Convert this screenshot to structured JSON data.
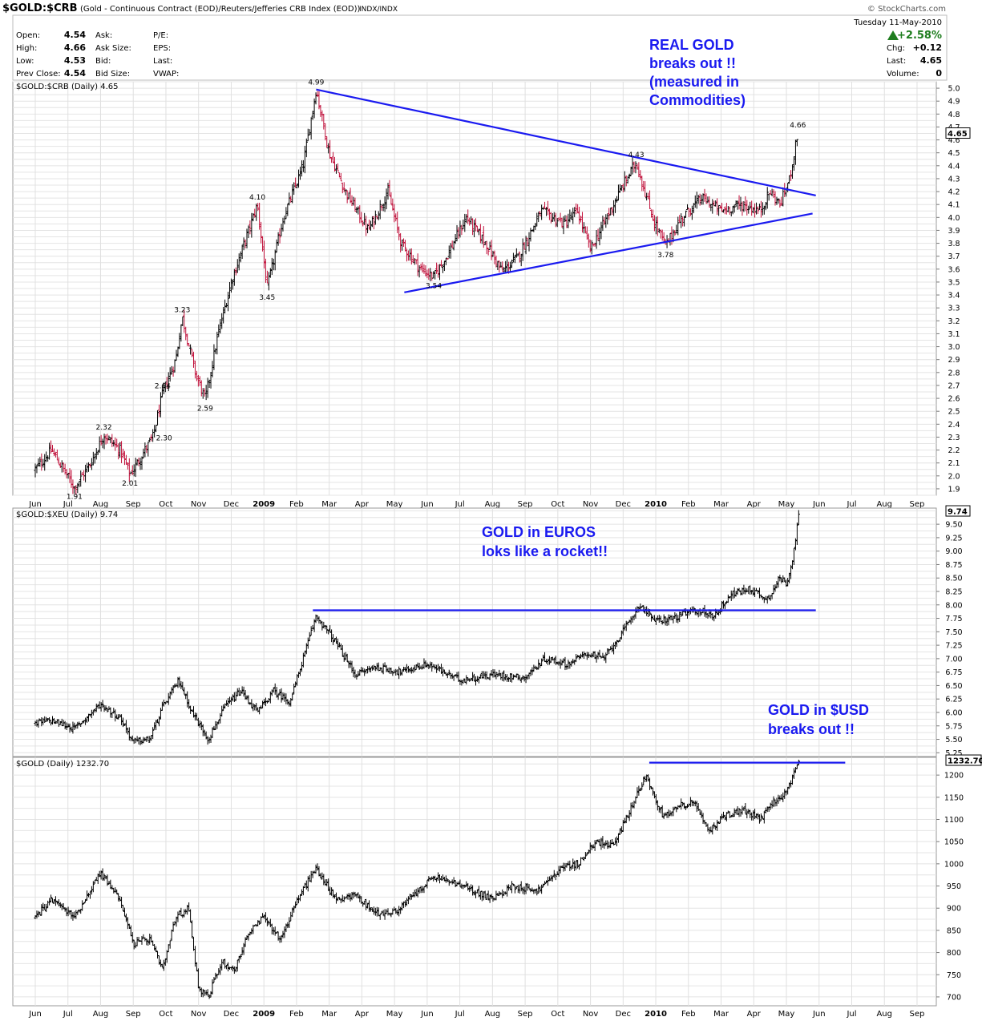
{
  "header": {
    "symbol": "$GOLD:$CRB",
    "description": "(Gold - Continuous Contract (EOD)/Reuters/Jefferies CRB Index (EOD))",
    "exchange": "INDX/INDX",
    "brand": "© StockCharts.com",
    "date_line": "Tuesday  11-May-2010",
    "change_pct": "+2.58%",
    "quote_left": [
      {
        "label": "Open:",
        "value": "4.54"
      },
      {
        "label": "High:",
        "value": "4.66"
      },
      {
        "label": "Low:",
        "value": "4.53"
      },
      {
        "label": "Prev Close:",
        "value": "4.54"
      }
    ],
    "quote_mid": [
      "Ask:",
      "Ask Size:",
      "Bid:",
      "Bid Size:"
    ],
    "quote_mid2": [
      "P/E:",
      "EPS:",
      "Last:",
      "VWAP:"
    ],
    "quote_right": [
      {
        "label": "Chg:",
        "value": "+0.12"
      },
      {
        "label": "Last:",
        "value": "4.65"
      },
      {
        "label": "Volume:",
        "value": "0"
      }
    ]
  },
  "colors": {
    "annotation": "#1a1af0",
    "trendline": "#1a1af0",
    "down_bar": "#c0103a",
    "up_bar": "#000000",
    "grid": "#d8d8d8"
  },
  "x_axis": {
    "months": [
      "Jun",
      "Jul",
      "Aug",
      "Sep",
      "Oct",
      "Nov",
      "Dec",
      "2009",
      "Feb",
      "Mar",
      "Apr",
      "May",
      "Jun",
      "Jul",
      "Aug",
      "Sep",
      "Oct",
      "Nov",
      "Dec",
      "2010",
      "Feb",
      "Mar",
      "Apr",
      "May",
      "Jun",
      "Jul",
      "Aug",
      "Sep"
    ]
  },
  "chart_data": [
    {
      "type": "ohlc",
      "label": "$GOLD:$CRB (Daily) 4.65",
      "last": "4.65",
      "y_ticks": [
        1.9,
        2.0,
        2.1,
        2.2,
        2.3,
        2.4,
        2.5,
        2.6,
        2.7,
        2.8,
        2.9,
        3.0,
        3.1,
        3.2,
        3.3,
        3.4,
        3.5,
        3.6,
        3.7,
        3.8,
        3.9,
        4.0,
        4.1,
        4.2,
        4.3,
        4.4,
        4.5,
        4.6,
        4.7,
        4.8,
        4.9,
        5.0
      ],
      "anchors": [
        {
          "m": 0,
          "v": 2.05
        },
        {
          "m": 0.5,
          "v": 2.2
        },
        {
          "m": 1.2,
          "v": 1.91
        },
        {
          "m": 1.7,
          "v": 2.1
        },
        {
          "m": 2.1,
          "v": 2.32
        },
        {
          "m": 2.6,
          "v": 2.2
        },
        {
          "m": 2.9,
          "v": 2.01
        },
        {
          "m": 3.6,
          "v": 2.3
        },
        {
          "m": 3.9,
          "v": 2.64
        },
        {
          "m": 4.3,
          "v": 2.9
        },
        {
          "m": 4.5,
          "v": 3.23
        },
        {
          "m": 4.9,
          "v": 2.8
        },
        {
          "m": 5.2,
          "v": 2.59
        },
        {
          "m": 5.6,
          "v": 3.1
        },
        {
          "m": 6.0,
          "v": 3.5
        },
        {
          "m": 6.4,
          "v": 3.8
        },
        {
          "m": 6.8,
          "v": 4.1
        },
        {
          "m": 7.1,
          "v": 3.45
        },
        {
          "m": 7.6,
          "v": 4.0
        },
        {
          "m": 8.2,
          "v": 4.4
        },
        {
          "m": 8.6,
          "v": 4.99
        },
        {
          "m": 9.0,
          "v": 4.5
        },
        {
          "m": 9.5,
          "v": 4.2
        },
        {
          "m": 10.2,
          "v": 3.9
        },
        {
          "m": 10.8,
          "v": 4.2
        },
        {
          "m": 11.2,
          "v": 3.8
        },
        {
          "m": 11.8,
          "v": 3.6
        },
        {
          "m": 12.2,
          "v": 3.54
        },
        {
          "m": 12.6,
          "v": 3.7
        },
        {
          "m": 13.2,
          "v": 4.0
        },
        {
          "m": 13.8,
          "v": 3.8
        },
        {
          "m": 14.3,
          "v": 3.58
        },
        {
          "m": 14.8,
          "v": 3.7
        },
        {
          "m": 15.5,
          "v": 4.05
        },
        {
          "m": 16.2,
          "v": 3.95
        },
        {
          "m": 16.6,
          "v": 4.05
        },
        {
          "m": 17.0,
          "v": 3.75
        },
        {
          "m": 17.5,
          "v": 4.0
        },
        {
          "m": 18.0,
          "v": 4.25
        },
        {
          "m": 18.4,
          "v": 4.43
        },
        {
          "m": 18.9,
          "v": 4.0
        },
        {
          "m": 19.3,
          "v": 3.78
        },
        {
          "m": 19.8,
          "v": 4.0
        },
        {
          "m": 20.4,
          "v": 4.15
        },
        {
          "m": 21.0,
          "v": 4.05
        },
        {
          "m": 21.6,
          "v": 4.1
        },
        {
          "m": 22.2,
          "v": 4.05
        },
        {
          "m": 22.5,
          "v": 4.2
        },
        {
          "m": 22.8,
          "v": 4.1
        },
        {
          "m": 23.1,
          "v": 4.3
        },
        {
          "m": 23.35,
          "v": 4.66
        }
      ],
      "point_labels": [
        {
          "m": 1.2,
          "v": 1.91,
          "text": "1.91",
          "pos": "below"
        },
        {
          "m": 2.1,
          "v": 2.32,
          "text": "2.32",
          "pos": "above"
        },
        {
          "m": 2.9,
          "v": 2.01,
          "text": "2.01",
          "pos": "below"
        },
        {
          "m": 3.6,
          "v": 2.3,
          "text": "2.30",
          "pos": "right"
        },
        {
          "m": 3.9,
          "v": 2.64,
          "text": "2.64",
          "pos": "above"
        },
        {
          "m": 4.5,
          "v": 3.23,
          "text": "3.23",
          "pos": "above"
        },
        {
          "m": 5.2,
          "v": 2.59,
          "text": "2.59",
          "pos": "below"
        },
        {
          "m": 6.8,
          "v": 4.1,
          "text": "4.10",
          "pos": "above"
        },
        {
          "m": 7.1,
          "v": 3.45,
          "text": "3.45",
          "pos": "below"
        },
        {
          "m": 8.6,
          "v": 4.99,
          "text": "4.99",
          "pos": "above"
        },
        {
          "m": 12.2,
          "v": 3.54,
          "text": "3.54",
          "pos": "below"
        },
        {
          "m": 18.4,
          "v": 4.43,
          "text": "4.43",
          "pos": "above"
        },
        {
          "m": 19.3,
          "v": 3.78,
          "text": "3.78",
          "pos": "below"
        },
        {
          "m": 23.35,
          "v": 4.66,
          "text": "4.66",
          "pos": "above"
        }
      ],
      "trendlines": [
        {
          "x1": 8.6,
          "y1": 4.99,
          "x2": 23.9,
          "y2": 4.17
        },
        {
          "x1": 11.3,
          "y1": 3.42,
          "x2": 23.8,
          "y2": 4.03
        }
      ],
      "annotation": [
        "REAL GOLD",
        "breaks out !!",
        "(measured in",
        "Commodities)"
      ]
    },
    {
      "type": "ohlc",
      "label": "$GOLD:$XEU (Daily) 9.74",
      "last": "9.74",
      "y_ticks": [
        5.25,
        5.5,
        5.75,
        6.0,
        6.25,
        6.5,
        6.75,
        7.0,
        7.25,
        7.5,
        7.75,
        8.0,
        8.25,
        8.5,
        8.75,
        9.0,
        9.25,
        9.5
      ],
      "y_tick_labels": [
        "5.25",
        "5.50",
        "5.75",
        "6.00",
        "6.25",
        "6.50",
        "6.75",
        "7.00",
        "7.25",
        "7.50",
        "7.75",
        "8.00",
        "8.25",
        "8.50",
        "8.75",
        "9.00",
        "9.25",
        "9.50"
      ],
      "anchors": [
        {
          "m": 0,
          "v": 5.8
        },
        {
          "m": 0.5,
          "v": 5.85
        },
        {
          "m": 1.2,
          "v": 5.7
        },
        {
          "m": 2.0,
          "v": 6.15
        },
        {
          "m": 2.6,
          "v": 5.9
        },
        {
          "m": 3.0,
          "v": 5.45
        },
        {
          "m": 3.5,
          "v": 5.5
        },
        {
          "m": 3.9,
          "v": 6.1
        },
        {
          "m": 4.4,
          "v": 6.6
        },
        {
          "m": 4.8,
          "v": 6.0
        },
        {
          "m": 5.3,
          "v": 5.5
        },
        {
          "m": 5.8,
          "v": 6.1
        },
        {
          "m": 6.3,
          "v": 6.4
        },
        {
          "m": 6.8,
          "v": 6.0
        },
        {
          "m": 7.3,
          "v": 6.4
        },
        {
          "m": 7.8,
          "v": 6.2
        },
        {
          "m": 8.2,
          "v": 7.0
        },
        {
          "m": 8.6,
          "v": 7.8
        },
        {
          "m": 9.2,
          "v": 7.3
        },
        {
          "m": 9.8,
          "v": 6.7
        },
        {
          "m": 10.4,
          "v": 6.85
        },
        {
          "m": 11.2,
          "v": 6.75
        },
        {
          "m": 12.0,
          "v": 6.9
        },
        {
          "m": 13.0,
          "v": 6.6
        },
        {
          "m": 14.0,
          "v": 6.7
        },
        {
          "m": 15.0,
          "v": 6.65
        },
        {
          "m": 15.6,
          "v": 7.0
        },
        {
          "m": 16.3,
          "v": 6.9
        },
        {
          "m": 16.9,
          "v": 7.1
        },
        {
          "m": 17.4,
          "v": 7.0
        },
        {
          "m": 18.0,
          "v": 7.5
        },
        {
          "m": 18.5,
          "v": 8.0
        },
        {
          "m": 19.0,
          "v": 7.7
        },
        {
          "m": 19.5,
          "v": 7.75
        },
        {
          "m": 20.2,
          "v": 7.9
        },
        {
          "m": 20.8,
          "v": 7.8
        },
        {
          "m": 21.3,
          "v": 8.2
        },
        {
          "m": 21.9,
          "v": 8.3
        },
        {
          "m": 22.4,
          "v": 8.1
        },
        {
          "m": 22.8,
          "v": 8.5
        },
        {
          "m": 23.0,
          "v": 8.4
        },
        {
          "m": 23.2,
          "v": 8.9
        },
        {
          "m": 23.4,
          "v": 9.74
        }
      ],
      "trendlines": [
        {
          "x1": 8.5,
          "y1": 7.9,
          "x2": 23.9,
          "y2": 7.9
        }
      ],
      "annotation": [
        "GOLD in EUROS",
        "loks like a rocket!!"
      ]
    },
    {
      "type": "ohlc",
      "label": "$GOLD (Daily) 1232.70",
      "last": "1232.70",
      "y_ticks": [
        700,
        750,
        800,
        850,
        900,
        950,
        1000,
        1050,
        1100,
        1150,
        1200
      ],
      "y_tick_labels": [
        "700",
        "750",
        "800",
        "850",
        "900",
        "950",
        "1000",
        "1050",
        "1100",
        "1150",
        "1200"
      ],
      "anchors": [
        {
          "m": 0,
          "v": 880
        },
        {
          "m": 0.5,
          "v": 920
        },
        {
          "m": 1.2,
          "v": 880
        },
        {
          "m": 2.0,
          "v": 980
        },
        {
          "m": 2.6,
          "v": 920
        },
        {
          "m": 3.0,
          "v": 820
        },
        {
          "m": 3.5,
          "v": 830
        },
        {
          "m": 3.9,
          "v": 760
        },
        {
          "m": 4.3,
          "v": 880
        },
        {
          "m": 4.7,
          "v": 900
        },
        {
          "m": 5.0,
          "v": 720
        },
        {
          "m": 5.3,
          "v": 700
        },
        {
          "m": 5.7,
          "v": 780
        },
        {
          "m": 6.1,
          "v": 760
        },
        {
          "m": 6.5,
          "v": 840
        },
        {
          "m": 7.0,
          "v": 880
        },
        {
          "m": 7.5,
          "v": 830
        },
        {
          "m": 8.1,
          "v": 930
        },
        {
          "m": 8.6,
          "v": 990
        },
        {
          "m": 9.2,
          "v": 920
        },
        {
          "m": 9.8,
          "v": 930
        },
        {
          "m": 10.4,
          "v": 890
        },
        {
          "m": 11.0,
          "v": 890
        },
        {
          "m": 11.6,
          "v": 930
        },
        {
          "m": 12.2,
          "v": 970
        },
        {
          "m": 12.7,
          "v": 960
        },
        {
          "m": 13.4,
          "v": 940
        },
        {
          "m": 14.0,
          "v": 920
        },
        {
          "m": 14.6,
          "v": 950
        },
        {
          "m": 15.4,
          "v": 940
        },
        {
          "m": 16.1,
          "v": 990
        },
        {
          "m": 16.6,
          "v": 1000
        },
        {
          "m": 17.2,
          "v": 1050
        },
        {
          "m": 17.7,
          "v": 1040
        },
        {
          "m": 18.2,
          "v": 1120
        },
        {
          "m": 18.7,
          "v": 1200
        },
        {
          "m": 19.2,
          "v": 1110
        },
        {
          "m": 19.7,
          "v": 1130
        },
        {
          "m": 20.2,
          "v": 1140
        },
        {
          "m": 20.6,
          "v": 1070
        },
        {
          "m": 21.1,
          "v": 1110
        },
        {
          "m": 21.7,
          "v": 1120
        },
        {
          "m": 22.2,
          "v": 1100
        },
        {
          "m": 22.6,
          "v": 1140
        },
        {
          "m": 23.0,
          "v": 1160
        },
        {
          "m": 23.4,
          "v": 1230
        }
      ],
      "trendlines": [
        {
          "x1": 18.8,
          "y1": 1228,
          "x2": 24.8,
          "y2": 1228
        }
      ],
      "annotation": [
        "GOLD in $USD",
        "breaks out !!"
      ]
    }
  ]
}
